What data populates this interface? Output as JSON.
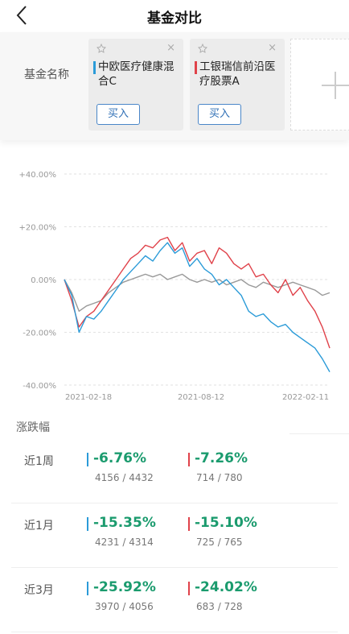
{
  "header": {
    "title": "基金对比",
    "back_icon": "chevron-left-icon"
  },
  "fund_header": {
    "label": "基金名称",
    "funds": [
      {
        "name": "中欧医疗健康混合C",
        "color": "#2b9bd8",
        "buy_label": "买入",
        "close": "×"
      },
      {
        "name": "工银瑞信前沿医疗股票A",
        "color": "#e0424a",
        "buy_label": "买入",
        "close": "×"
      }
    ],
    "add_icon": "plus-icon"
  },
  "chart_data": {
    "type": "line",
    "y_ticks": [
      "+40.00%",
      "+20.00%",
      "0.00%",
      "-20.00%",
      "-40.00%"
    ],
    "ylim": [
      -40,
      40
    ],
    "x_ticks": [
      "2021-02-18",
      "2021-08-12",
      "2022-02-11"
    ],
    "grid": true,
    "series": [
      {
        "name": "中欧医疗健康混合C",
        "color": "#2b9bd8",
        "values": [
          0,
          -6,
          -20,
          -14,
          -15,
          -12,
          -8,
          -4,
          0,
          3,
          6,
          9,
          7,
          11,
          14,
          10,
          12,
          5,
          8,
          4,
          2,
          -2,
          0,
          -3,
          -6,
          -12,
          -14,
          -13,
          -16,
          -18,
          -17,
          -20,
          -22,
          -24,
          -26,
          -30,
          -35
        ]
      },
      {
        "name": "工银瑞信前沿医疗股票A",
        "color": "#e0424a",
        "values": [
          0,
          -8,
          -18,
          -14,
          -12,
          -8,
          -4,
          0,
          4,
          8,
          10,
          13,
          12,
          15,
          16,
          11,
          14,
          7,
          10,
          11,
          6,
          12,
          10,
          6,
          4,
          6,
          1,
          2,
          -2,
          -5,
          0,
          -6,
          -3,
          -8,
          -12,
          -18,
          -26
        ]
      },
      {
        "name": "",
        "color": "#999999",
        "values": [
          0,
          -5,
          -12,
          -10,
          -9,
          -8,
          -5,
          -3,
          -1,
          0,
          1,
          2,
          1,
          2,
          0,
          1,
          2,
          0,
          -1,
          0,
          -1,
          0,
          -2,
          -1,
          0,
          -2,
          -3,
          -1,
          -2,
          -3,
          -2,
          -1,
          -2,
          -3,
          -4,
          -6,
          -5
        ]
      }
    ]
  },
  "performance": {
    "title": "涨跌幅",
    "rows": [
      {
        "period": "近1周",
        "fund1": {
          "value": "-6.76%",
          "rank": "4156 / 4432"
        },
        "fund2": {
          "value": "-7.26%",
          "rank": "714 / 780"
        }
      },
      {
        "period": "近1月",
        "fund1": {
          "value": "-15.35%",
          "rank": "4231 / 4314"
        },
        "fund2": {
          "value": "-15.10%",
          "rank": "725 / 765"
        }
      },
      {
        "period": "近3月",
        "fund1": {
          "value": "-25.92%",
          "rank": "3970 / 4056"
        },
        "fund2": {
          "value": "-24.02%",
          "rank": "683 / 728"
        }
      }
    ]
  }
}
